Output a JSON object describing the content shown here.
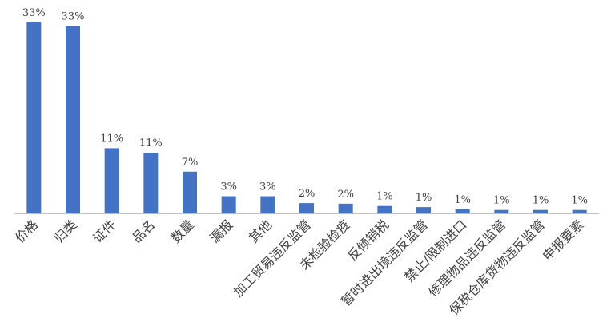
{
  "chart_data": {
    "type": "bar",
    "categories": [
      "价格",
      "归类",
      "证件",
      "品名",
      "数量",
      "漏报",
      "其他",
      "加工贸易违反监管",
      "未检验检疫",
      "反倾销税",
      "暂时进出境违反监管",
      "禁止/限制进口",
      "修理物品违反监管",
      "保税仓库货物违反监管",
      "申报要素"
    ],
    "values": [
      33.4,
      32.8,
      11.4,
      10.6,
      7.3,
      3.0,
      3.0,
      1.8,
      1.7,
      1.3,
      1.1,
      0.7,
      0.6,
      0.6,
      0.6
    ],
    "value_labels": [
      "33%",
      "33%",
      "11%",
      "11%",
      "7%",
      "3%",
      "3%",
      "2%",
      "2%",
      "1%",
      "1%",
      "1%",
      "1%",
      "1%",
      "1%"
    ],
    "color": "#4472c4"
  }
}
